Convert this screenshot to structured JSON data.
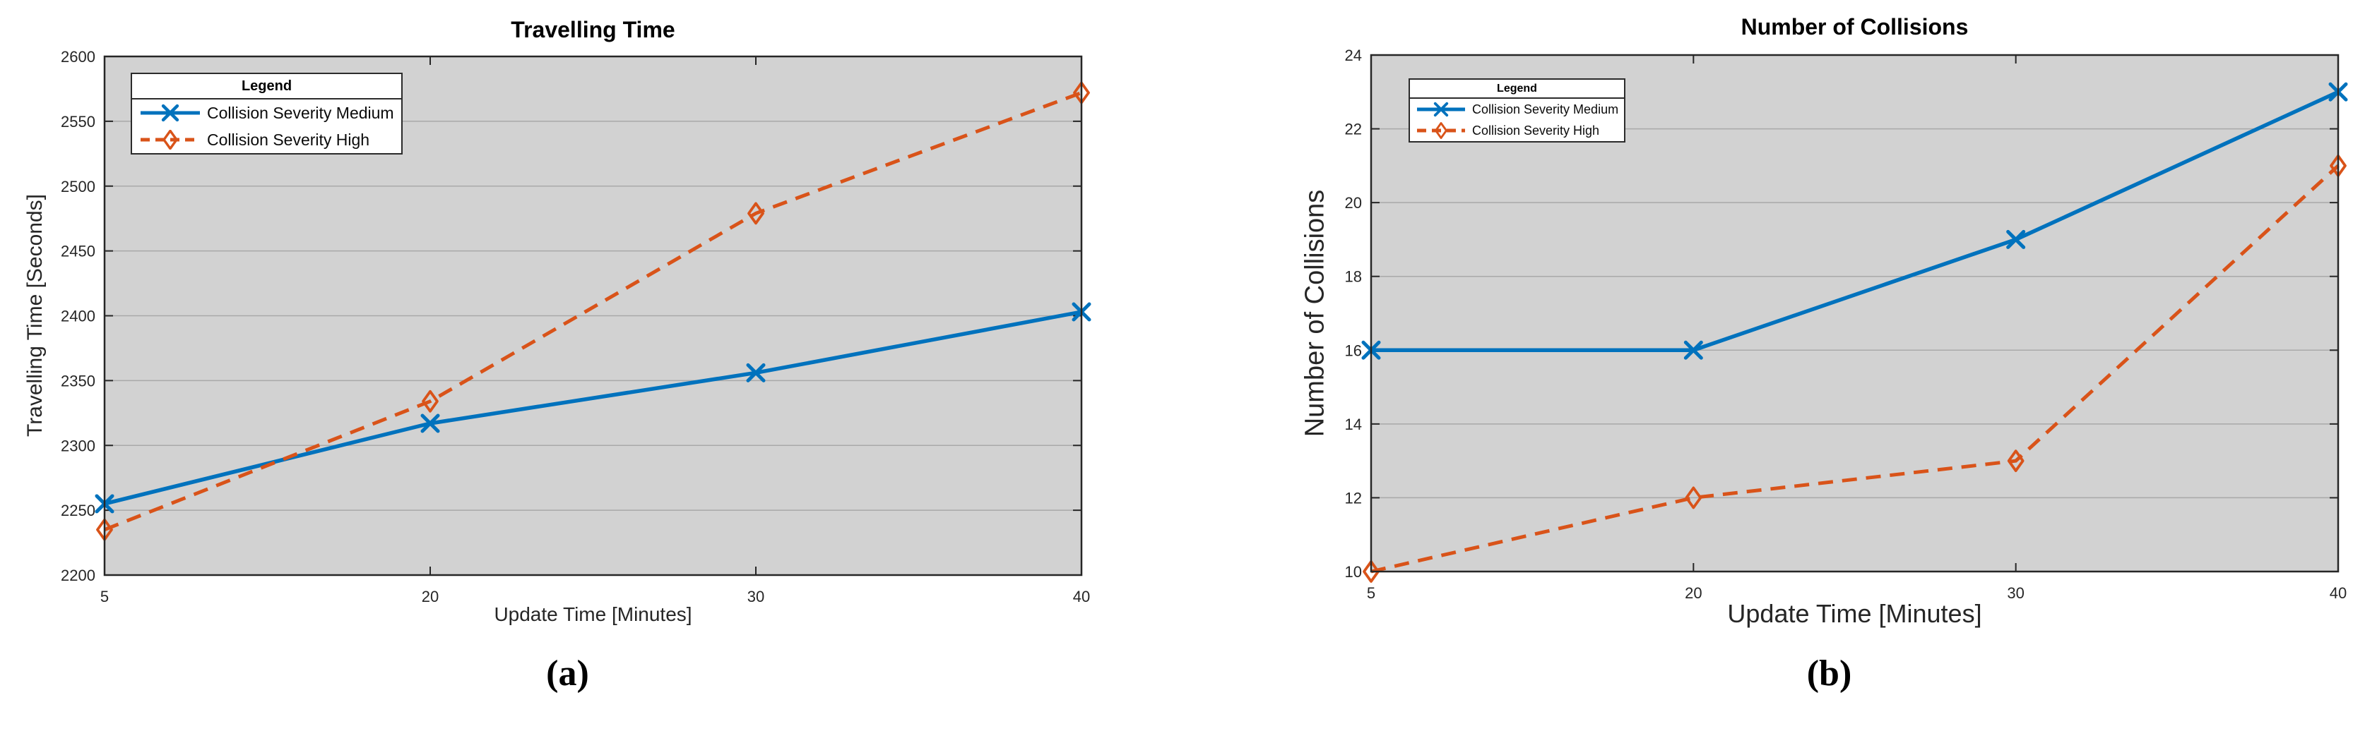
{
  "colors": {
    "medium_blue": "#0072BD",
    "high_orange": "#D95319",
    "plot_background": "#d2d2d2",
    "grid_line": "#a9a9a9",
    "axis_line": "#262626",
    "tick_text": "#262626",
    "legend_border": "#2b2b2b"
  },
  "chart_data": [
    {
      "type": "line",
      "title": "Travelling Time",
      "xlabel": "Update Time [Minutes]",
      "ylabel": "Travelling Time [Seconds]",
      "caption": "(a)",
      "x": [
        5,
        20,
        30,
        40
      ],
      "x_tick_labels": [
        "5",
        "20",
        "30",
        "40"
      ],
      "x_spacing": "equal",
      "ylim": [
        2200,
        2600
      ],
      "yticks": [
        2200,
        2250,
        2300,
        2350,
        2400,
        2450,
        2500,
        2550,
        2600
      ],
      "grid": "horizontal-y",
      "legend_position": "top-left",
      "legend_title": "Legend",
      "series": [
        {
          "name": "Collision Severity Medium",
          "color": "#0072BD",
          "line_style": "solid",
          "marker": "x",
          "values": [
            2255,
            2317,
            2356,
            2403
          ]
        },
        {
          "name": "Collision Severity High",
          "color": "#D95319",
          "line_style": "dashed",
          "marker": "diamond-open",
          "values": [
            2235,
            2334,
            2479,
            2572
          ]
        }
      ]
    },
    {
      "type": "line",
      "title": "Number of Collisions",
      "xlabel": "Update Time [Minutes]",
      "ylabel": "Number of Collisions",
      "caption": "(b)",
      "x": [
        5,
        20,
        30,
        40
      ],
      "x_tick_labels": [
        "5",
        "20",
        "30",
        "40"
      ],
      "x_spacing": "equal",
      "ylim": [
        10,
        24
      ],
      "yticks": [
        10,
        12,
        14,
        16,
        18,
        20,
        22,
        24
      ],
      "grid": "horizontal-y",
      "legend_position": "top-left",
      "legend_title": "Legend",
      "series": [
        {
          "name": "Collision Severity Medium",
          "color": "#0072BD",
          "line_style": "solid",
          "marker": "x",
          "values": [
            16,
            16,
            19,
            23
          ]
        },
        {
          "name": "Collision Severity High",
          "color": "#D95319",
          "line_style": "dashed",
          "marker": "diamond-open",
          "values": [
            10,
            12,
            13,
            21
          ]
        }
      ]
    }
  ]
}
